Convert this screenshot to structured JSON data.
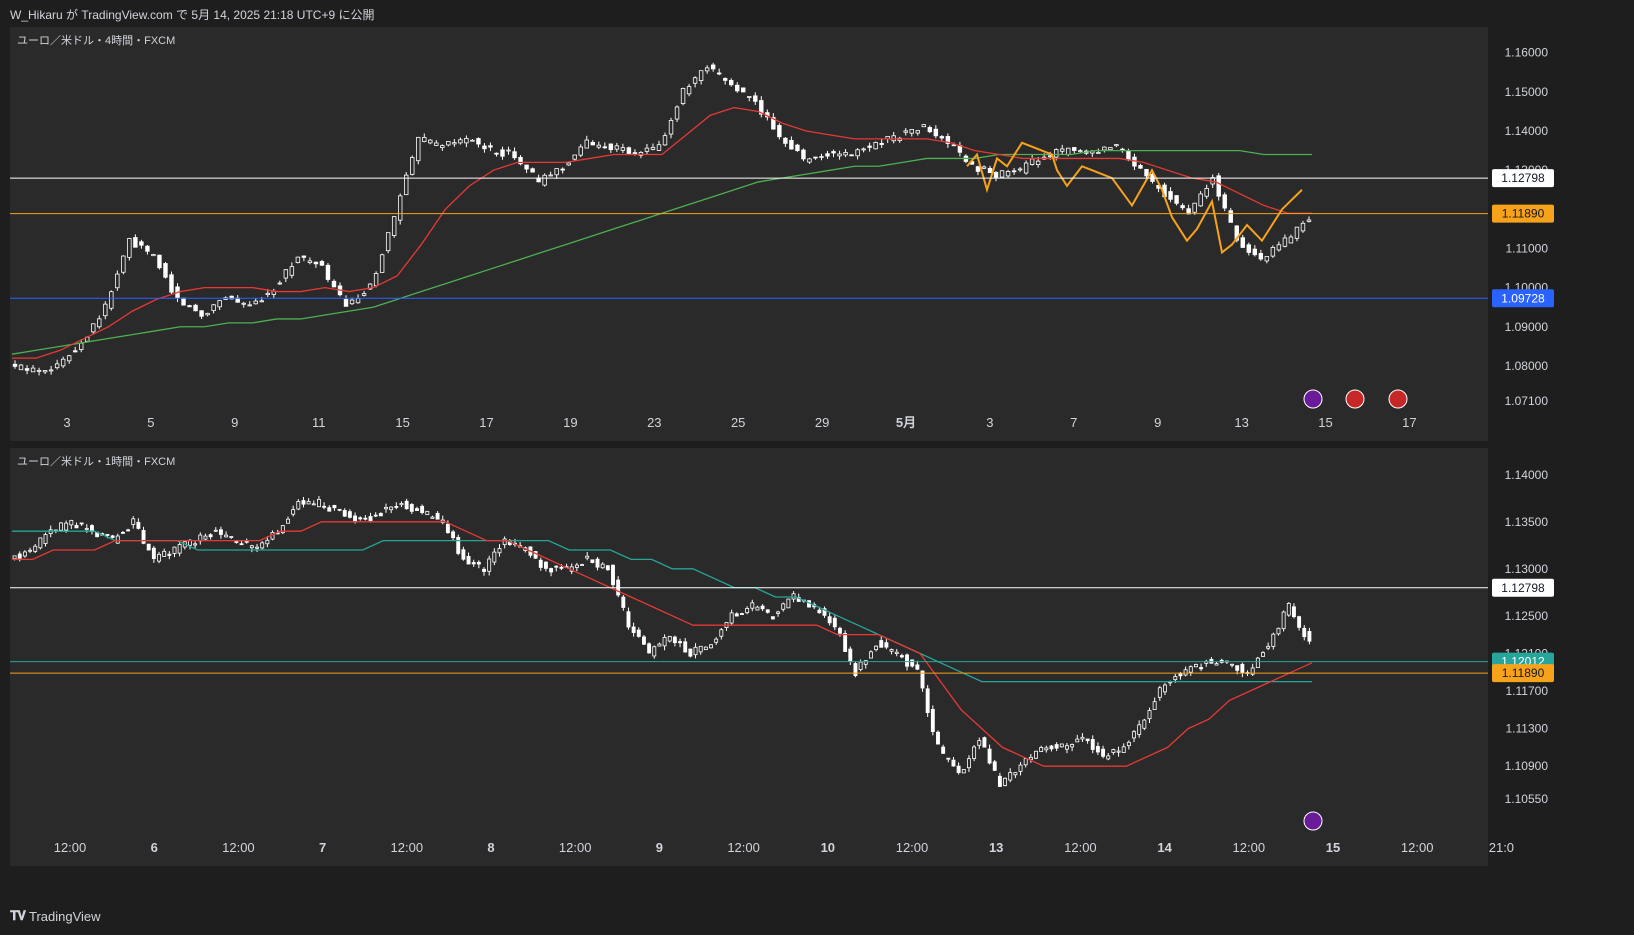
{
  "header": {
    "text": "W_Hikaru が TradingView.com で 5月 14, 2025 21:18 UTC+9 に公開"
  },
  "footer": {
    "brand": "TradingView"
  },
  "colors": {
    "bull": "#ffffff",
    "bear": "#ffffff",
    "wick": "#ffffff",
    "ma_red": "#e53935",
    "ma_green": "#4caf50",
    "ma_teal": "#26a69a",
    "zigzag": "#f7a21b",
    "line_white": "#ffffff",
    "line_orange": "#f7a21b",
    "line_blue": "#2962ff",
    "line_teal": "#26a69a"
  },
  "chart_data": [
    {
      "type": "candlestick",
      "title": "ユーロ／米ドル・4時間・FXCM",
      "ylim": [
        1.069,
        1.163
      ],
      "y_ticks": [
        "1.16000",
        "1.15000",
        "1.14000",
        "1.13000",
        "1.12000",
        "1.11000",
        "1.10000",
        "1.09000",
        "1.08000",
        "1.07100"
      ],
      "x_ticks": [
        "3",
        "5",
        "9",
        "11",
        "15",
        "17",
        "19",
        "23",
        "25",
        "29",
        "5月",
        "3",
        "7",
        "9",
        "13",
        "15",
        "17"
      ],
      "horizontal_lines": [
        {
          "value": 1.12798,
          "label": "1.12798",
          "color": "white"
        },
        {
          "value": 1.1189,
          "label": "1.11890",
          "color": "orange"
        },
        {
          "value": 1.09728,
          "label": "1.09728",
          "color": "blue"
        }
      ],
      "close_path": [
        1.08,
        1.079,
        1.08,
        1.086,
        1.095,
        1.112,
        1.108,
        1.097,
        1.093,
        1.098,
        1.095,
        1.1,
        1.108,
        1.105,
        1.095,
        1.1,
        1.118,
        1.138,
        1.136,
        1.138,
        1.135,
        1.134,
        1.127,
        1.131,
        1.137,
        1.136,
        1.134,
        1.136,
        1.15,
        1.156,
        1.152,
        1.147,
        1.139,
        1.133,
        1.134,
        1.134,
        1.137,
        1.139,
        1.141,
        1.137,
        1.131,
        1.129,
        1.13,
        1.134,
        1.135,
        1.134,
        1.136,
        1.13,
        1.124,
        1.119,
        1.128,
        1.112,
        1.107,
        1.112,
        1.118
      ],
      "ma_red": [
        1.082,
        1.082,
        1.084,
        1.087,
        1.09,
        1.094,
        1.097,
        1.099,
        1.1,
        1.1,
        1.1,
        1.099,
        1.099,
        1.1,
        1.099,
        1.1,
        1.103,
        1.111,
        1.12,
        1.126,
        1.13,
        1.132,
        1.132,
        1.132,
        1.133,
        1.134,
        1.134,
        1.134,
        1.139,
        1.144,
        1.146,
        1.145,
        1.142,
        1.14,
        1.139,
        1.138,
        1.138,
        1.138,
        1.138,
        1.137,
        1.135,
        1.134,
        1.133,
        1.133,
        1.133,
        1.133,
        1.133,
        1.132,
        1.13,
        1.128,
        1.127,
        1.124,
        1.121,
        1.119,
        1.119
      ],
      "ma_green": [
        1.083,
        1.084,
        1.085,
        1.086,
        1.087,
        1.088,
        1.089,
        1.09,
        1.09,
        1.091,
        1.091,
        1.092,
        1.092,
        1.093,
        1.094,
        1.095,
        1.097,
        1.099,
        1.101,
        1.103,
        1.105,
        1.107,
        1.109,
        1.111,
        1.113,
        1.115,
        1.117,
        1.119,
        1.121,
        1.123,
        1.125,
        1.127,
        1.128,
        1.129,
        1.13,
        1.131,
        1.131,
        1.132,
        1.133,
        1.133,
        1.133,
        1.134,
        1.134,
        1.134,
        1.134,
        1.135,
        1.135,
        1.135,
        1.135,
        1.135,
        1.135,
        1.135,
        1.134,
        1.134,
        1.134
      ],
      "zigzag": [
        [
          0.955,
          1.131
        ],
        [
          0.965,
          1.134
        ],
        [
          0.975,
          1.125
        ],
        [
          0.985,
          1.133
        ],
        [
          0.995,
          1.131
        ],
        [
          1.0,
          1.133
        ],
        [
          1.01,
          1.137
        ],
        [
          1.02,
          1.136
        ],
        [
          1.04,
          1.134
        ],
        [
          1.045,
          1.13
        ],
        [
          1.055,
          1.126
        ],
        [
          1.07,
          1.131
        ],
        [
          1.08,
          1.13
        ],
        [
          1.1,
          1.128
        ],
        [
          1.12,
          1.121
        ],
        [
          1.14,
          1.13
        ],
        [
          1.15,
          1.125
        ],
        [
          1.16,
          1.118
        ],
        [
          1.175,
          1.112
        ],
        [
          1.185,
          1.115
        ],
        [
          1.2,
          1.122
        ],
        [
          1.21,
          1.109
        ],
        [
          1.22,
          1.111
        ],
        [
          1.235,
          1.116
        ],
        [
          1.25,
          1.112
        ],
        [
          1.27,
          1.12
        ],
        [
          1.29,
          1.125
        ]
      ]
    },
    {
      "type": "candlestick",
      "title": "ユーロ／米ドル・1時間・FXCM",
      "ylim": [
        1.102,
        1.142
      ],
      "y_ticks": [
        "1.14000",
        "1.13500",
        "1.13000",
        "1.12500",
        "1.12100",
        "1.11700",
        "1.11300",
        "1.10900",
        "1.10550"
      ],
      "x_ticks": [
        "12:00",
        "6",
        "12:00",
        "7",
        "12:00",
        "8",
        "12:00",
        "9",
        "12:00",
        "10",
        "12:00",
        "13",
        "12:00",
        "14",
        "12:00",
        "15",
        "12:00",
        "21:0"
      ],
      "horizontal_lines": [
        {
          "value": 1.12798,
          "label": "1.12798",
          "color": "white"
        },
        {
          "value": 1.12012,
          "label": "1.12012",
          "color": "teal"
        },
        {
          "value": 1.1189,
          "label": "1.11890",
          "color": "orange"
        }
      ],
      "close_path": [
        1.131,
        1.132,
        1.134,
        1.135,
        1.134,
        1.133,
        1.135,
        1.131,
        1.132,
        1.133,
        1.134,
        1.133,
        1.132,
        1.134,
        1.137,
        1.137,
        1.136,
        1.135,
        1.136,
        1.137,
        1.136,
        1.135,
        1.131,
        1.13,
        1.133,
        1.132,
        1.13,
        1.13,
        1.131,
        1.13,
        1.124,
        1.121,
        1.123,
        1.121,
        1.122,
        1.125,
        1.126,
        1.125,
        1.127,
        1.126,
        1.124,
        1.119,
        1.122,
        1.121,
        1.119,
        1.111,
        1.108,
        1.112,
        1.107,
        1.109,
        1.111,
        1.111,
        1.112,
        1.11,
        1.111,
        1.114,
        1.118,
        1.119,
        1.12,
        1.12,
        1.119,
        1.122,
        1.126,
        1.122
      ],
      "ma_red": [
        1.131,
        1.131,
        1.132,
        1.132,
        1.132,
        1.133,
        1.133,
        1.133,
        1.133,
        1.133,
        1.133,
        1.133,
        1.133,
        1.134,
        1.134,
        1.135,
        1.135,
        1.135,
        1.135,
        1.135,
        1.135,
        1.135,
        1.134,
        1.133,
        1.133,
        1.132,
        1.131,
        1.13,
        1.129,
        1.128,
        1.127,
        1.126,
        1.125,
        1.124,
        1.124,
        1.124,
        1.124,
        1.124,
        1.124,
        1.124,
        1.123,
        1.123,
        1.123,
        1.122,
        1.121,
        1.118,
        1.115,
        1.113,
        1.111,
        1.11,
        1.109,
        1.109,
        1.109,
        1.109,
        1.109,
        1.11,
        1.111,
        1.113,
        1.114,
        1.116,
        1.117,
        1.118,
        1.119,
        1.12
      ],
      "ma_teal": [
        1.134,
        1.134,
        1.134,
        1.134,
        1.134,
        1.133,
        1.133,
        1.133,
        1.133,
        1.132,
        1.132,
        1.132,
        1.132,
        1.132,
        1.132,
        1.132,
        1.132,
        1.132,
        1.133,
        1.133,
        1.133,
        1.133,
        1.133,
        1.133,
        1.133,
        1.133,
        1.133,
        1.132,
        1.132,
        1.132,
        1.131,
        1.131,
        1.13,
        1.13,
        1.129,
        1.128,
        1.128,
        1.127,
        1.127,
        1.126,
        1.125,
        1.124,
        1.123,
        1.122,
        1.121,
        1.12,
        1.119,
        1.118,
        1.118,
        1.118,
        1.118,
        1.118,
        1.118,
        1.118,
        1.118,
        1.118,
        1.118,
        1.118,
        1.118,
        1.118,
        1.118,
        1.118,
        1.118,
        1.118
      ]
    }
  ]
}
